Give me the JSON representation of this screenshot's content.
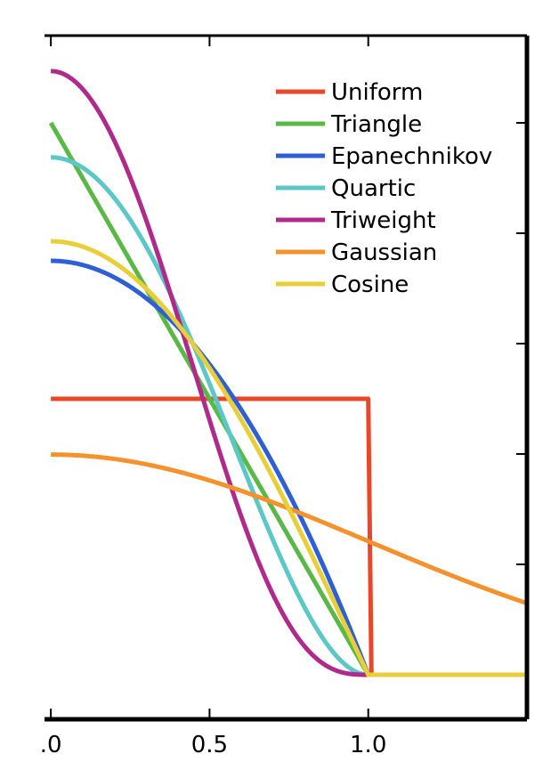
{
  "chart_data": {
    "type": "line",
    "title": "",
    "xlabel": "",
    "ylabel": "",
    "xlim": [
      -0.02,
      1.5
    ],
    "ylim": [
      0,
      1.0
    ],
    "x_ticks": [
      0.0,
      0.5,
      1.0
    ],
    "x_tick_labels": [
      ".0",
      "0.5",
      "1.0"
    ],
    "y_ticks": [
      0.0,
      0.2,
      0.4,
      0.6,
      0.8,
      1.0
    ],
    "grid": false,
    "legend_position": "top-right",
    "series": [
      {
        "name": "Uniform",
        "color": "#e8472a",
        "kernel": "uniform",
        "x": [
          0.0,
          0.5,
          1.0,
          1.01,
          1.5
        ],
        "values": [
          0.5,
          0.5,
          0.5,
          0.0,
          0.0
        ]
      },
      {
        "name": "Triangle",
        "color": "#5ab847",
        "kernel": "triangle",
        "x": [
          0.0,
          0.25,
          0.5,
          0.75,
          1.0,
          1.5
        ],
        "values": [
          1.0,
          0.75,
          0.5,
          0.25,
          0.0,
          0.0
        ]
      },
      {
        "name": "Epanechnikov",
        "color": "#2e5fd6",
        "kernel": "epanechnikov",
        "x": [
          0.0,
          0.25,
          0.5,
          0.75,
          1.0,
          1.5
        ],
        "values": [
          0.75,
          0.703,
          0.5625,
          0.328,
          0.0,
          0.0
        ]
      },
      {
        "name": "Quartic",
        "color": "#5cc7c7",
        "kernel": "quartic",
        "x": [
          0.0,
          0.25,
          0.5,
          0.75,
          1.0,
          1.5
        ],
        "values": [
          0.9375,
          0.824,
          0.527,
          0.179,
          0.0,
          0.0
        ]
      },
      {
        "name": "Triweight",
        "color": "#b02a8c",
        "kernel": "triweight",
        "x": [
          0.0,
          0.25,
          0.5,
          0.75,
          1.0,
          1.5
        ],
        "values": [
          1.094,
          0.9,
          0.461,
          0.073,
          0.0,
          0.0
        ]
      },
      {
        "name": "Gaussian",
        "color": "#f5922e",
        "kernel": "gaussian",
        "x": [
          0.0,
          0.5,
          1.0,
          1.5
        ],
        "values": [
          0.399,
          0.352,
          0.242,
          0.13
        ]
      },
      {
        "name": "Cosine",
        "color": "#e8cf3a",
        "kernel": "cosine",
        "x": [
          0.0,
          0.25,
          0.5,
          0.75,
          1.0,
          1.5
        ],
        "values": [
          0.785,
          0.726,
          0.555,
          0.301,
          0.0,
          0.0
        ]
      }
    ]
  }
}
